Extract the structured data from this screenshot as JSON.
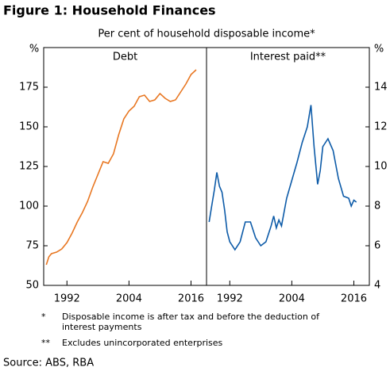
{
  "title": "Figure 1: Household Finances",
  "subtitle": "Per cent of household disposable income*",
  "chart_data": [
    {
      "type": "line",
      "title": "Debt",
      "y_unit": "%",
      "y_axis_side": "left",
      "grid": false,
      "x": [
        1988,
        1988.5,
        1989,
        1990,
        1991,
        1992,
        1993,
        1994,
        1995,
        1996,
        1997,
        1998,
        1999,
        2000,
        2001,
        2002,
        2003,
        2004,
        2005,
        2006,
        2007,
        2008,
        2009,
        2010,
        2011,
        2012,
        2013,
        2014,
        2015,
        2016,
        2017
      ],
      "series": [
        {
          "name": "Debt",
          "color": "#e87722",
          "values": [
            63,
            68,
            70,
            71,
            73,
            77,
            83,
            90,
            96,
            103,
            112,
            120,
            128,
            127,
            133,
            145,
            155,
            160,
            163,
            169,
            170,
            166,
            167,
            171,
            168,
            166,
            167,
            172,
            177,
            183,
            186
          ]
        }
      ],
      "xlim": [
        1987.5,
        2019
      ],
      "xticks": [
        1992,
        2004,
        2016
      ],
      "ylim": [
        50,
        200
      ],
      "yticks": [
        50,
        75,
        100,
        125,
        150,
        175
      ]
    },
    {
      "type": "line",
      "title": "Interest paid**",
      "y_unit": "%",
      "y_axis_side": "right",
      "grid": false,
      "x": [
        1988,
        1988.5,
        1989,
        1989.5,
        1990,
        1990.5,
        1991,
        1991.5,
        1992,
        1993,
        1994,
        1995,
        1996,
        1997,
        1998,
        1999,
        2000,
        2000.5,
        2001,
        2001.5,
        2002,
        2003,
        2004,
        2005,
        2006,
        2007,
        2007.7,
        2008.3,
        2009,
        2009.5,
        2010,
        2011,
        2012,
        2013,
        2014,
        2015,
        2015.5,
        2016,
        2016.5
      ],
      "series": [
        {
          "name": "Interest paid**",
          "color": "#0d5ba8",
          "values": [
            7.2,
            8,
            8.8,
            9.7,
            9,
            8.7,
            7.8,
            6.7,
            6.2,
            5.8,
            6.2,
            7.2,
            7.2,
            6.4,
            6.0,
            6.2,
            7.0,
            7.5,
            6.9,
            7.3,
            7.0,
            8.4,
            9.3,
            10.2,
            11.2,
            12.0,
            13.1,
            11.0,
            9.1,
            9.8,
            11.0,
            11.4,
            10.8,
            9.4,
            8.5,
            8.4,
            8.0,
            8.3,
            8.2
          ]
        }
      ],
      "xlim": [
        1987.5,
        2019
      ],
      "xticks": [
        1992,
        2004,
        2016
      ],
      "ylim": [
        4,
        16
      ],
      "yticks": [
        4,
        6,
        8,
        10,
        12,
        14
      ]
    }
  ],
  "notes": [
    {
      "mark": "*",
      "text": "Disposable income is after tax and before the deduction of interest payments"
    },
    {
      "mark": "**",
      "text": "Excludes unincorporated enterprises"
    }
  ],
  "source": "Source: ABS, RBA"
}
